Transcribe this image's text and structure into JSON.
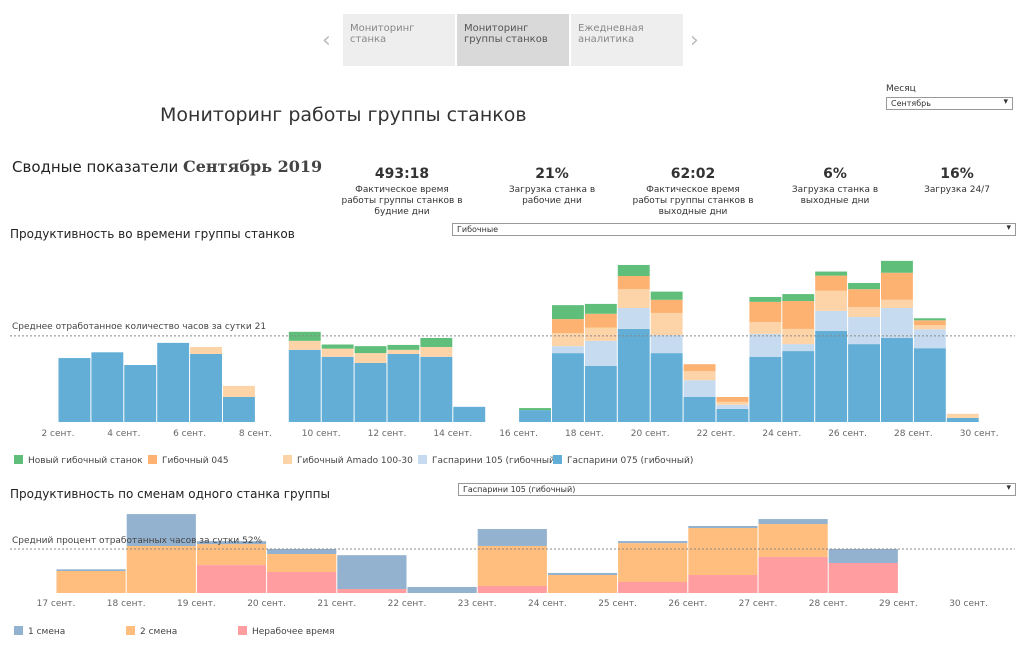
{
  "tabs": [
    "Мониторинг станка",
    "Мониторинг группы станков",
    "Ежедневная аналитика"
  ],
  "header": {
    "title": "Мониторинг работы группы станков"
  },
  "filters": {
    "month_label": "Месяц",
    "month_value": "Сентябрь"
  },
  "summary": {
    "label": "Сводные показатели",
    "period": "Сентябрь 2019"
  },
  "kpis": [
    {
      "value": "493:18",
      "label": "Фактическое время работы группы станков в будние дни"
    },
    {
      "value": "21%",
      "label": "Загрузка станка в рабочие дни"
    },
    {
      "value": "62:02",
      "label": "Фактическое время работы группы станков в выходные дни"
    },
    {
      "value": "6%",
      "label": "Загрузка станка в выходные дни"
    },
    {
      "value": "16%",
      "label": "Загрузка 24/7"
    }
  ],
  "chart_data": [
    {
      "type": "bar",
      "stacked": true,
      "title": "Продуктивность во времени группы станков",
      "dropdown": "Гибочные",
      "reference_line": {
        "label": "Среднее отработанное количество часов за сутки",
        "value": 21
      },
      "categories": [
        "2 сент.",
        null,
        "4 сент.",
        null,
        "6 сент.",
        null,
        "8 сент.",
        null,
        "10 сент.",
        null,
        "12 сент.",
        null,
        "14 сент.",
        null,
        "16 сент.",
        null,
        "18 сент.",
        null,
        "20 сент.",
        null,
        "22 сент.",
        null,
        "24 сент.",
        null,
        "26 сент.",
        null,
        "28 сент.",
        null,
        "30 сент."
      ],
      "series": [
        {
          "name": "Новый гибочный станок",
          "color": "#5fbf7a",
          "values": [
            0,
            0,
            0,
            0,
            0,
            0,
            null,
            2.2,
            1.0,
            1.7,
            1.2,
            2.2,
            0,
            null,
            0.5,
            3.4,
            2.4,
            2.7,
            2.0,
            0,
            0,
            1.2,
            1.7,
            1.0,
            1.5,
            2.9,
            0.5,
            0,
            null
          ]
        },
        {
          "name": "Гибочный 045",
          "color": "#fdb272",
          "values": [
            0,
            0,
            0,
            0,
            0,
            0,
            null,
            0,
            0,
            0,
            0,
            0,
            0,
            null,
            0,
            3.4,
            3.4,
            3.2,
            3.2,
            1.7,
            1.2,
            4.9,
            6.8,
            3.7,
            4.4,
            6.6,
            1.2,
            0,
            null
          ]
        },
        {
          "name": "Гибочный Amado 100-30",
          "color": "#fdd3a8",
          "values": [
            0,
            0,
            0,
            0,
            1.7,
            2.7,
            null,
            2.2,
            2.0,
            2.4,
            1.0,
            2.4,
            0,
            null,
            0,
            3.2,
            3.2,
            4.6,
            5.4,
            2.2,
            0.7,
            2.9,
            3.7,
            4.9,
            2.4,
            2.0,
            1.0,
            1.0,
            null
          ]
        },
        {
          "name": "Гаспарини 105 (гибочный)",
          "color": "#c6dbef",
          "values": [
            0,
            0,
            0,
            0,
            0,
            0,
            null,
            0,
            0,
            0,
            0,
            0,
            0,
            null,
            0,
            1.7,
            6.1,
            5.1,
            4.4,
            4.1,
            1.0,
            5.6,
            1.7,
            4.9,
            6.6,
            7.3,
            4.6,
            0,
            null
          ]
        },
        {
          "name": "Гаспарини 075 (гибочный)",
          "color": "#62aed6",
          "values": [
            15.6,
            17.0,
            13.9,
            19.3,
            16.6,
            6.1,
            null,
            17.6,
            15.9,
            14.4,
            16.6,
            15.9,
            3.7,
            null,
            2.9,
            16.8,
            13.7,
            22.7,
            16.8,
            6.1,
            3.2,
            15.9,
            17.3,
            22.2,
            19.0,
            20.5,
            18.0,
            1.0,
            null
          ]
        }
      ]
    },
    {
      "type": "bar",
      "stacked": true,
      "title": "Продуктивность по сменам одного станка группы",
      "dropdown": "Гаспарини 105 (гибочный)",
      "reference_line": {
        "label": "Средний процент отработанных часов за сутки",
        "value": 52,
        "value_label": "52%"
      },
      "categories": [
        "17 сент.",
        "18 сент.",
        "19 сент.",
        "20 сент.",
        "21 сент.",
        "22 сент.",
        "23 сент.",
        "24 сент.",
        "25 сент.",
        "26 сент.",
        "27 сент.",
        "28 сент.",
        "29 сент.",
        "30 сент."
      ],
      "series": [
        {
          "name": "1 смена",
          "color": "#93b2cf",
          "values": [
            2,
            37.8,
            3.5,
            5.9,
            40,
            7.1,
            20,
            2.4,
            2.4,
            2.4,
            5.9,
            16.5,
            null,
            null
          ]
        },
        {
          "name": "2 смена",
          "color": "#ffbe7d",
          "values": [
            26,
            55.5,
            24.8,
            21.3,
            0,
            0,
            47.3,
            21.3,
            46,
            55.5,
            39,
            0,
            null,
            null
          ]
        },
        {
          "name": "Нерабочее время",
          "color": "#ff9da0",
          "values": [
            0,
            0,
            33,
            24.8,
            4.7,
            0,
            8.3,
            0,
            13,
            21.3,
            42.5,
            35.5,
            null,
            null
          ]
        }
      ]
    }
  ]
}
